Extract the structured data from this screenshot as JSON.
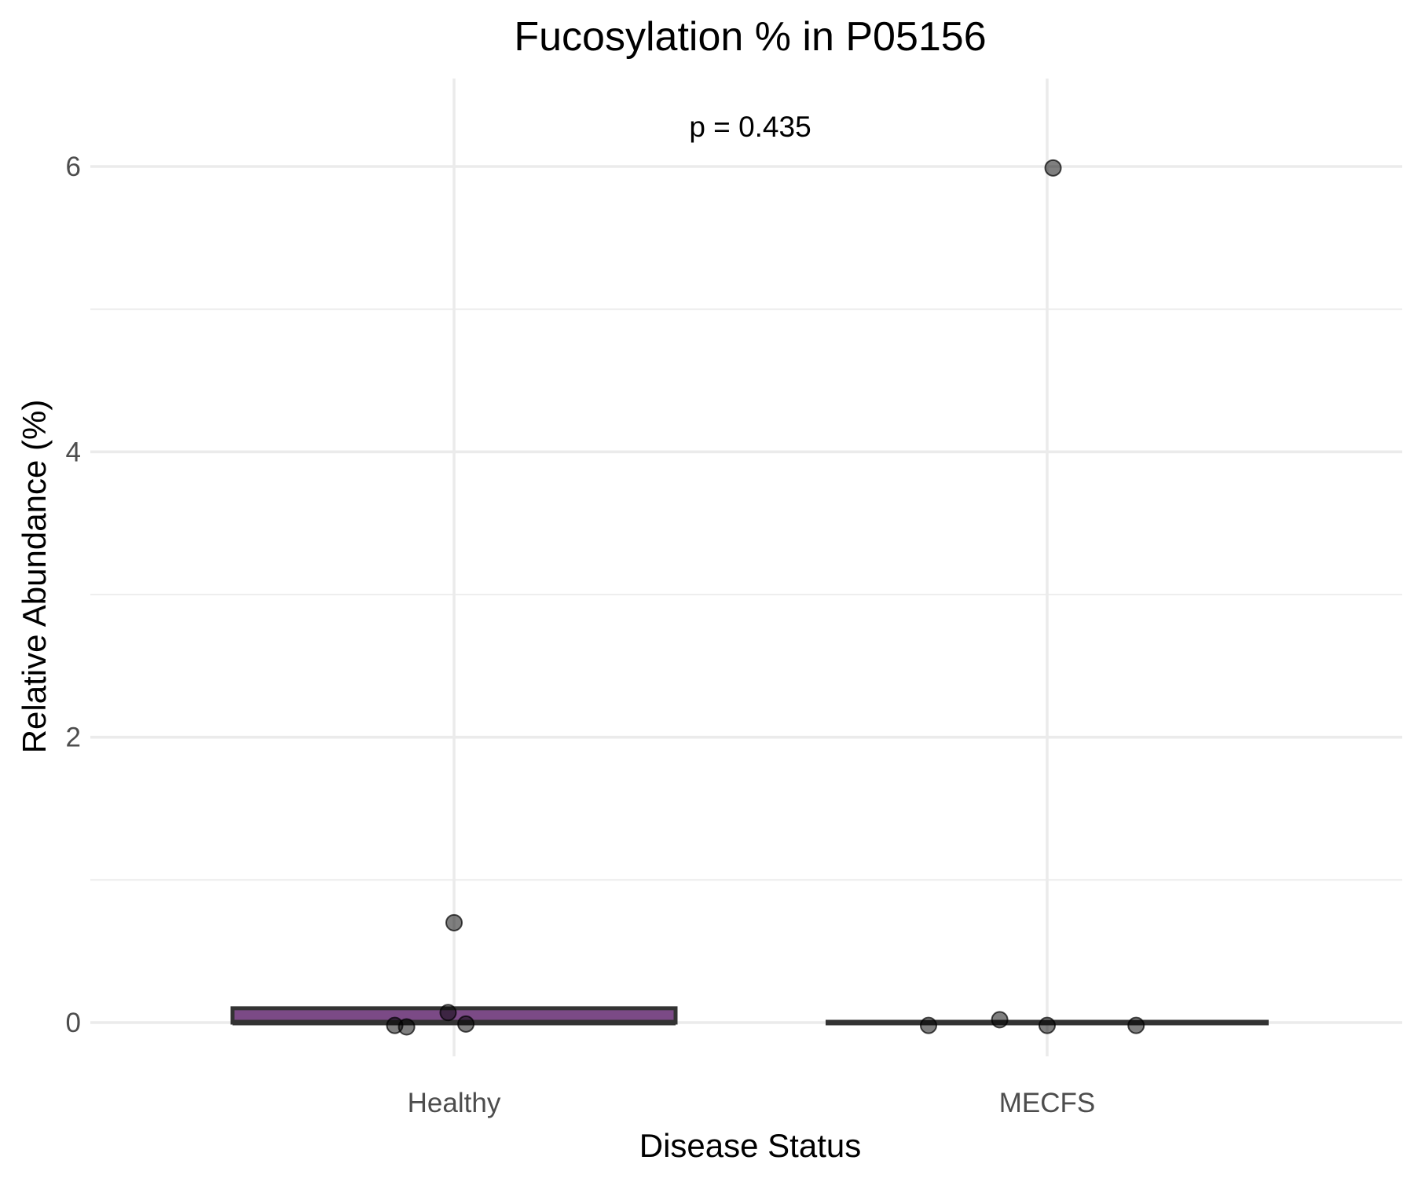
{
  "chart_data": {
    "type": "boxplot",
    "title": "Fucosylation % in P05156",
    "xlabel": "Disease Status",
    "ylabel": "Relative Abundance (%)",
    "ylim": [
      -0.2,
      6.6
    ],
    "y_ticks": [
      0,
      2,
      4,
      6
    ],
    "y_tick_labels": [
      "0",
      "2",
      "4",
      "6"
    ],
    "grid": true,
    "annotation": "p = 0.435",
    "categories": [
      "Healthy",
      "MECFS"
    ],
    "boxes": [
      {
        "category": "Healthy",
        "fill": "#7b4a86",
        "lower": 0.0,
        "median": 0.0,
        "upper": 0.1
      },
      {
        "category": "MECFS",
        "fill": "#4b2d52",
        "lower": 0.0,
        "median": 0.0,
        "upper": 0.0
      }
    ],
    "points": [
      {
        "category": "Healthy",
        "values": [
          0.7,
          0.07,
          -0.02,
          -0.03,
          -0.01
        ],
        "jitter": [
          0.0,
          -0.01,
          -0.1,
          -0.08,
          0.02
        ]
      },
      {
        "category": "MECFS",
        "values": [
          5.99,
          0.02,
          -0.02,
          -0.02,
          -0.02
        ],
        "jitter": [
          0.01,
          -0.08,
          0.0,
          -0.2,
          0.15
        ]
      }
    ],
    "point_color": "#000000",
    "box_outline_color": "#333333"
  }
}
